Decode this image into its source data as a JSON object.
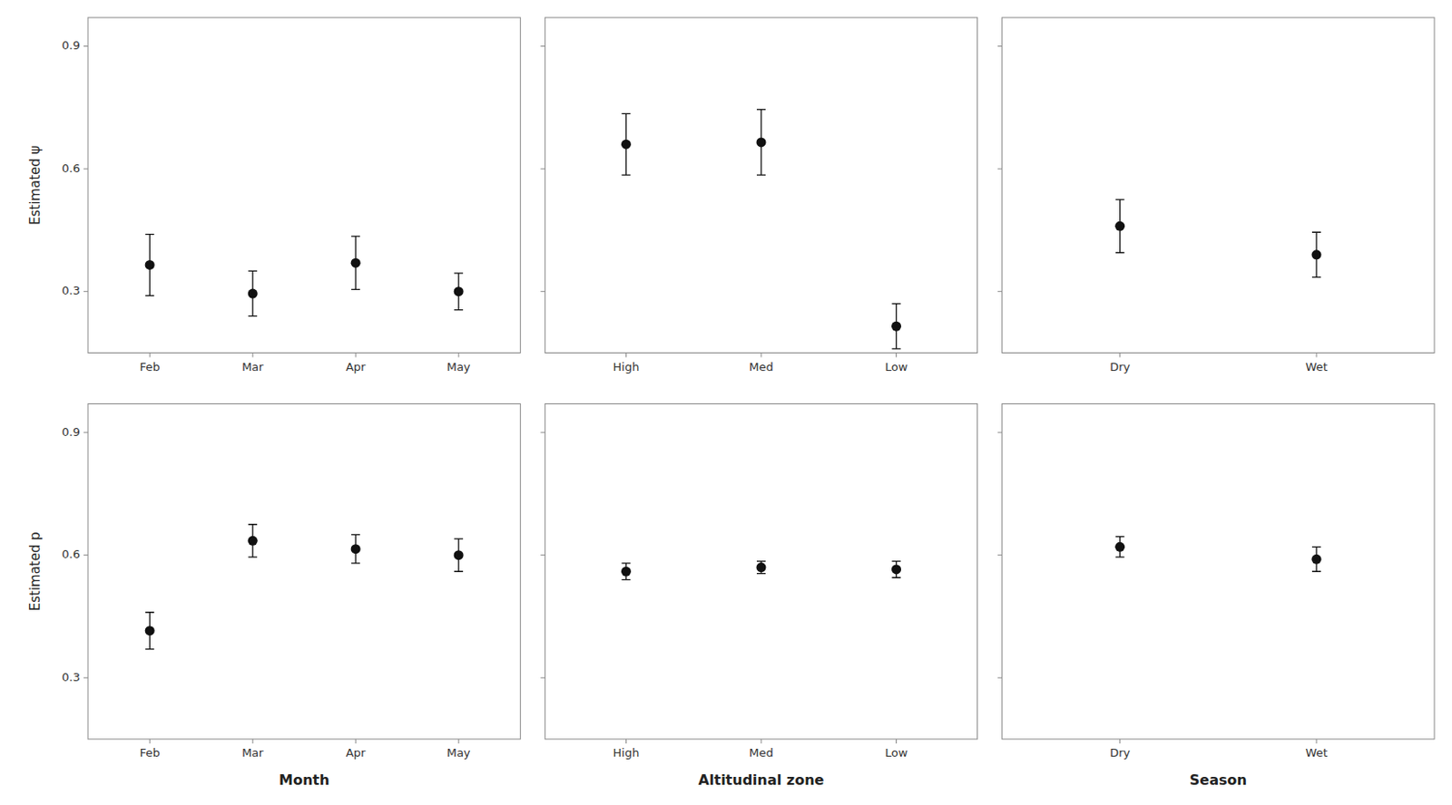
{
  "chart_data": [
    {
      "type": "errorbar",
      "categories": [
        "Feb",
        "Mar",
        "Apr",
        "May"
      ],
      "values": [
        0.365,
        0.295,
        0.37,
        0.3
      ],
      "errors": [
        0.075,
        0.055,
        0.065,
        0.045
      ],
      "ylabel": "Estimated ψ",
      "ylim": [
        0.15,
        0.97
      ],
      "yticks": [
        0.3,
        0.6,
        0.9
      ],
      "color": "#111111",
      "marker": "circle",
      "grid": false
    },
    {
      "type": "errorbar",
      "categories": [
        "High",
        "Med",
        "Low"
      ],
      "values": [
        0.66,
        0.665,
        0.215
      ],
      "errors": [
        0.075,
        0.08,
        0.055
      ],
      "ylim": [
        0.15,
        0.97
      ],
      "yticks": [
        0.3,
        0.6,
        0.9
      ],
      "color": "#111111",
      "marker": "circle",
      "grid": false,
      "tick_labels": "x"
    },
    {
      "type": "errorbar",
      "categories": [
        "Dry",
        "Wet"
      ],
      "values": [
        0.46,
        0.39
      ],
      "errors": [
        0.065,
        0.055
      ],
      "ylim": [
        0.15,
        0.97
      ],
      "yticks": [
        0.3,
        0.6,
        0.9
      ],
      "color": "#111111",
      "marker": "circle",
      "grid": false,
      "tick_labels": "x"
    },
    {
      "type": "errorbar",
      "categories": [
        "Feb",
        "Mar",
        "Apr",
        "May"
      ],
      "values": [
        0.415,
        0.635,
        0.615,
        0.6
      ],
      "errors": [
        0.045,
        0.04,
        0.035,
        0.04
      ],
      "ylabel": "Estimated p",
      "xlabel": "Month",
      "ylim": [
        0.15,
        0.97
      ],
      "yticks": [
        0.3,
        0.6,
        0.9
      ],
      "color": "#111111",
      "marker": "circle",
      "grid": false
    },
    {
      "type": "errorbar",
      "categories": [
        "High",
        "Med",
        "Low"
      ],
      "values": [
        0.56,
        0.57,
        0.565
      ],
      "errors": [
        0.02,
        0.015,
        0.02
      ],
      "xlabel": "Altitudinal zone",
      "ylim": [
        0.15,
        0.97
      ],
      "yticks": [
        0.3,
        0.6,
        0.9
      ],
      "color": "#111111",
      "marker": "circle",
      "grid": false,
      "tick_labels": "x"
    },
    {
      "type": "errorbar",
      "categories": [
        "Dry",
        "Wet"
      ],
      "values": [
        0.62,
        0.59
      ],
      "errors": [
        0.025,
        0.03
      ],
      "xlabel": "Season",
      "ylim": [
        0.15,
        0.97
      ],
      "yticks": [
        0.3,
        0.6,
        0.9
      ],
      "color": "#111111",
      "marker": "circle",
      "grid": false,
      "tick_labels": "x"
    }
  ]
}
